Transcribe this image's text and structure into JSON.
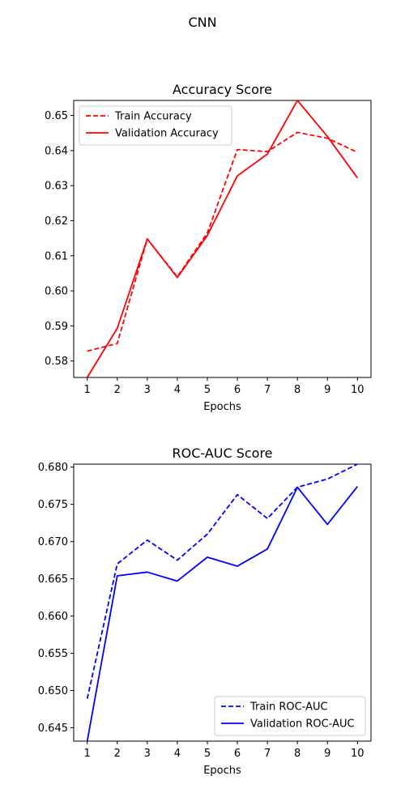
{
  "figure": {
    "title": "CNN"
  },
  "chart_data": [
    {
      "type": "line",
      "title": "Accuracy Score",
      "xlabel": "Epochs",
      "ylabel": "",
      "x": [
        1,
        2,
        3,
        4,
        5,
        6,
        7,
        8,
        9,
        10
      ],
      "xlim": [
        0.55,
        10.45
      ],
      "ylim": [
        0.5753,
        0.6543
      ],
      "yticks": [
        0.58,
        0.59,
        0.6,
        0.61,
        0.62,
        0.63,
        0.64,
        0.65
      ],
      "yticklabels": [
        "0.58",
        "0.59",
        "0.60",
        "0.61",
        "0.62",
        "0.63",
        "0.64",
        "0.65"
      ],
      "legend_position": "upper-left",
      "series": [
        {
          "name": "Train Accuracy",
          "color": "#ff0000",
          "dash": "dashed",
          "values": [
            0.5828,
            0.585,
            0.6148,
            0.604,
            0.6165,
            0.6403,
            0.6397,
            0.6452,
            0.6435,
            0.6395
          ]
        },
        {
          "name": "Validation Accuracy",
          "color": "#ff0000",
          "dash": "solid",
          "values": [
            0.5753,
            0.5893,
            0.6148,
            0.6038,
            0.6158,
            0.6328,
            0.639,
            0.6543,
            0.644,
            0.6322
          ]
        }
      ]
    },
    {
      "type": "line",
      "title": "ROC-AUC Score",
      "xlabel": "Epochs",
      "ylabel": "",
      "x": [
        1,
        2,
        3,
        4,
        5,
        6,
        7,
        8,
        9,
        10
      ],
      "xlim": [
        0.55,
        10.45
      ],
      "ylim": [
        0.6432,
        0.6804
      ],
      "yticks": [
        0.645,
        0.65,
        0.655,
        0.66,
        0.665,
        0.67,
        0.675,
        0.68
      ],
      "yticklabels": [
        "0.645",
        "0.650",
        "0.655",
        "0.660",
        "0.665",
        "0.670",
        "0.675",
        "0.680"
      ],
      "legend_position": "lower-right",
      "series": [
        {
          "name": "Train ROC-AUC",
          "color": "#0000ff",
          "dash": "dashed",
          "values": [
            0.6489,
            0.667,
            0.6702,
            0.6675,
            0.671,
            0.6763,
            0.6731,
            0.6773,
            0.6784,
            0.6804
          ]
        },
        {
          "name": "Validation ROC-AUC",
          "color": "#0000ff",
          "dash": "solid",
          "values": [
            0.6432,
            0.6654,
            0.6659,
            0.6647,
            0.6679,
            0.6667,
            0.669,
            0.6773,
            0.6723,
            0.6774
          ]
        }
      ]
    }
  ]
}
